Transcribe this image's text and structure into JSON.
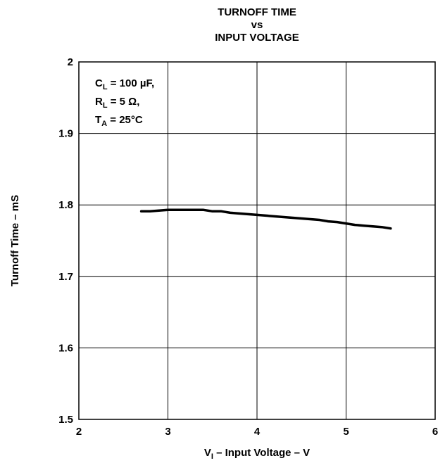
{
  "chart_data": {
    "type": "line",
    "title_lines": [
      "TURNOFF TIME",
      "vs",
      "INPUT VOLTAGE"
    ],
    "xlabel": {
      "main": "V",
      "sub": "I",
      "rest": " – Input Voltage – V"
    },
    "ylabel": "Turnoff Time – mS",
    "xlim": [
      2,
      6
    ],
    "ylim": [
      1.5,
      2.0
    ],
    "x_ticks": [
      "2",
      "3",
      "4",
      "5",
      "6"
    ],
    "y_ticks": [
      "1.5",
      "1.6",
      "1.7",
      "1.8",
      "1.9",
      "2"
    ],
    "grid": true,
    "conditions": [
      {
        "main": "C",
        "sub": "L",
        "rest": " = 100 µF,"
      },
      {
        "main": "R",
        "sub": "L",
        "rest": " = 5 Ω,"
      },
      {
        "main": "T",
        "sub": "A",
        "rest": " = 25°C"
      }
    ],
    "series": [
      {
        "x": [
          2.7,
          2.8,
          2.9,
          3.0,
          3.1,
          3.2,
          3.3,
          3.4,
          3.5,
          3.6,
          3.7,
          3.8,
          3.9,
          4.0,
          4.1,
          4.2,
          4.3,
          4.4,
          4.5,
          4.6,
          4.7,
          4.8,
          4.9,
          5.0,
          5.1,
          5.2,
          5.3,
          5.4,
          5.5
        ],
        "y": [
          1.791,
          1.791,
          1.792,
          1.793,
          1.793,
          1.793,
          1.793,
          1.793,
          1.791,
          1.791,
          1.789,
          1.788,
          1.787,
          1.786,
          1.785,
          1.784,
          1.783,
          1.782,
          1.781,
          1.78,
          1.779,
          1.777,
          1.776,
          1.774,
          1.772,
          1.771,
          1.77,
          1.769,
          1.767
        ],
        "color": "#000000"
      }
    ]
  }
}
